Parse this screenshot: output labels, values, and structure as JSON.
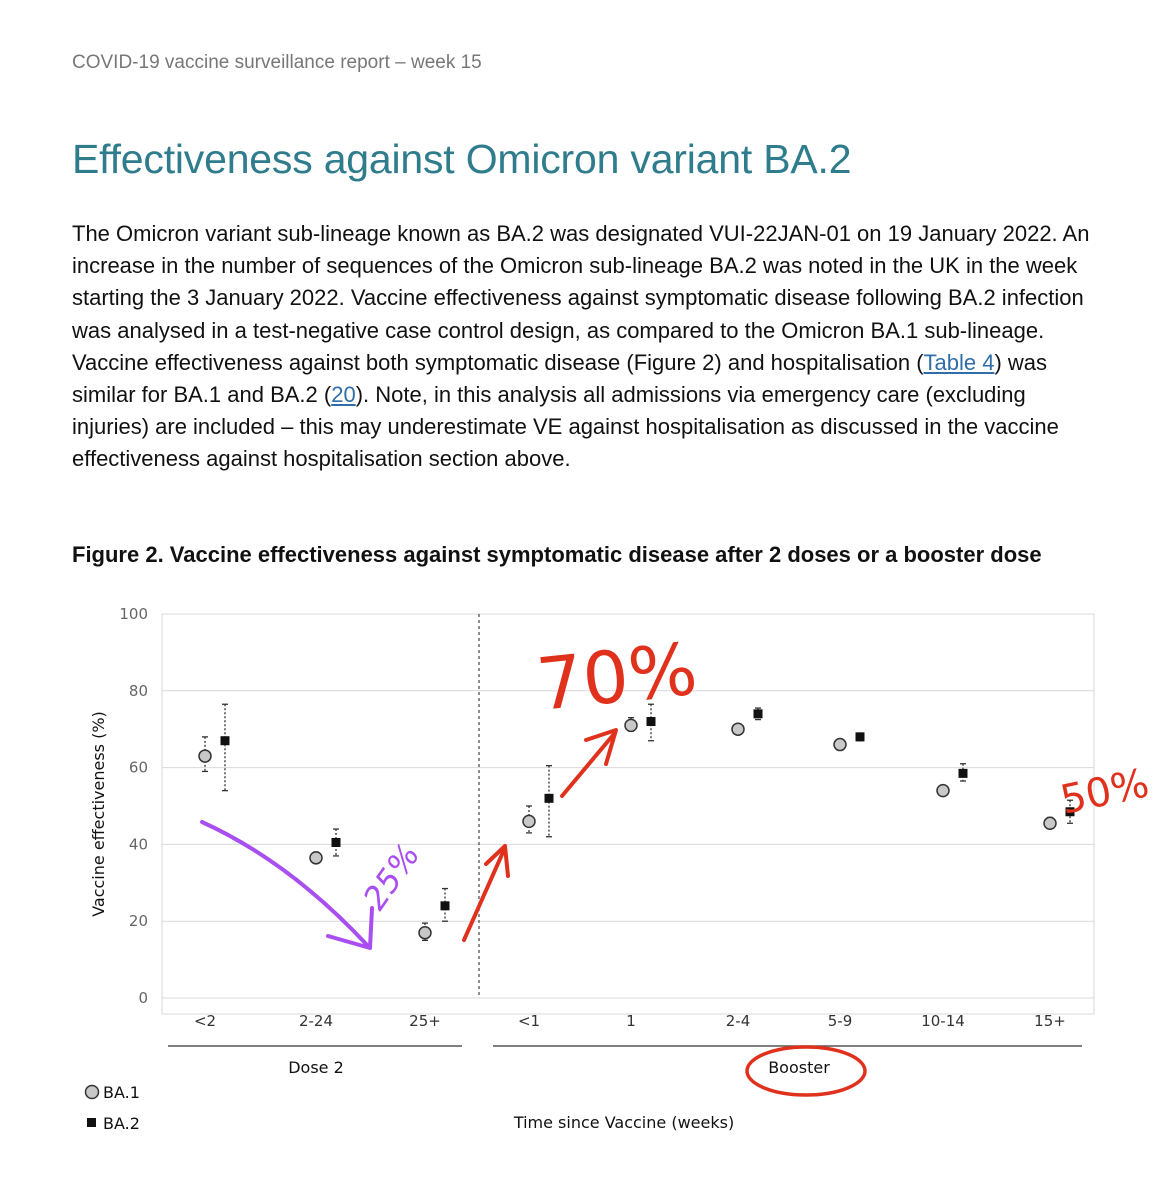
{
  "header": "COVID-19 vaccine surveillance report – week 15",
  "title": "Effectiveness against Omicron variant BA.2",
  "paragraph": {
    "part1": "The Omicron variant sub-lineage known as BA.2 was designated VUI-22JAN-01 on 19 January 2022. An increase in the number of sequences of the Omicron sub-lineage BA.2 was noted in the UK in the week starting the 3 January 2022. Vaccine effectiveness against symptomatic disease following BA.2 infection was analysed in a test-negative case control design, as compared to the Omicron BA.1 sub-lineage. Vaccine effectiveness against both symptomatic disease (Figure 2) and hospitalisation (",
    "link1": "Table 4",
    "part2": ") was similar for BA.1 and BA.2 (",
    "link2": "20",
    "part3": "). Note, in this analysis all admissions via emergency care (excluding injuries) are included – this may underestimate VE against hospitalisation as discussed in the vaccine effectiveness against hospitalisation section above."
  },
  "figure_caption": "Figure 2. Vaccine effectiveness against symptomatic disease after 2 doses or a booster dose",
  "chart_data": {
    "type": "scatter",
    "title": "",
    "ylabel": "Vaccine effectiveness (%)",
    "xlabel": "Time since Vaccine (weeks)",
    "ylim": [
      0,
      100
    ],
    "yticks": [
      0,
      20,
      40,
      60,
      80,
      100
    ],
    "categories": [
      "<2",
      "2-24",
      "25+",
      "<1",
      "1",
      "2-4",
      "5-9",
      "10-14",
      "15+"
    ],
    "groups": [
      {
        "label": "Dose 2",
        "categories": [
          "<2",
          "2-24",
          "25+"
        ]
      },
      {
        "label": "Booster",
        "categories": [
          "<1",
          "1",
          "2-4",
          "5-9",
          "10-14",
          "15+"
        ]
      }
    ],
    "series": [
      {
        "name": "BA.1",
        "marker": "circle",
        "values": [
          63,
          36.5,
          17,
          46,
          71,
          70,
          66,
          54,
          45.5
        ],
        "ci_low": [
          59,
          35.5,
          15,
          43,
          69.5,
          69,
          65,
          53,
          44.5
        ],
        "ci_high": [
          68,
          38,
          19.5,
          50,
          73,
          71,
          67,
          55,
          47
        ]
      },
      {
        "name": "BA.2",
        "marker": "square",
        "values": [
          67,
          40.5,
          24,
          52,
          72,
          74,
          68,
          58.5,
          48.5
        ],
        "ci_low": [
          54,
          37,
          20,
          42,
          67,
          72.5,
          67,
          56.5,
          45.5
        ],
        "ci_high": [
          76.5,
          44,
          28.5,
          60.5,
          76.5,
          75.5,
          69,
          61,
          51.5
        ]
      }
    ],
    "legend": {
      "placement": "bottom-left",
      "entries": [
        "BA.1",
        "BA.2"
      ]
    },
    "grid": true,
    "annotations": [
      "70%",
      "25%",
      "50%"
    ]
  },
  "colors": {
    "title": "#2e7c8c",
    "link": "#2f6ea8",
    "red_annotation": "#e0311d",
    "purple_annotation": "#a94ef0"
  }
}
